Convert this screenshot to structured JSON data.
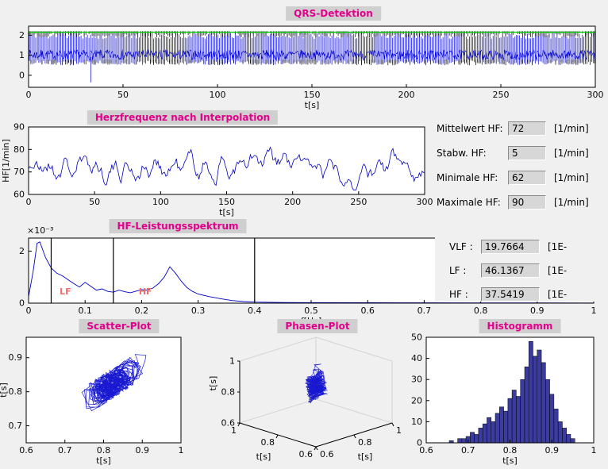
{
  "window": {
    "bg": "#f0f0f0",
    "title_bg": "#cfcfcf",
    "title_color": "#e2008c"
  },
  "panels": {
    "qrs": {
      "title": "QRS-Detektion"
    },
    "hr": {
      "title": "Herzfrequenz nach Interpolation"
    },
    "spectrum": {
      "title": "HF-Leistungsspektrum"
    },
    "scatter": {
      "title": "Scatter-Plot"
    },
    "phase": {
      "title": "Phasen-Plot"
    },
    "histogram": {
      "title": "Histogramm"
    }
  },
  "fields": {
    "hr_stats": [
      {
        "label": "Mittelwert HF:",
        "value": "72",
        "unit": "[1/min]"
      },
      {
        "label": "Stabw. HF:",
        "value": "5",
        "unit": "[1/min]"
      },
      {
        "label": "Minimale HF:",
        "value": "62",
        "unit": "[1/min]"
      },
      {
        "label": "Maximale HF:",
        "value": "90",
        "unit": "[1/min]"
      }
    ],
    "bands": [
      {
        "label": "VLF :",
        "value": "19.7664",
        "unit": "[1E-"
      },
      {
        "label": "LF :",
        "value": "46.1367",
        "unit": "[1E-"
      },
      {
        "label": "HF :",
        "value": "37.5419",
        "unit": "[1E-"
      }
    ]
  },
  "chart_data": [
    {
      "id": "qrs",
      "type": "line",
      "title": "QRS-Detektion",
      "xlabel": "t[s]",
      "xlim": [
        0,
        300
      ],
      "xticks": [
        0,
        50,
        100,
        150,
        200,
        250,
        300
      ],
      "ylim": [
        -0.6,
        2.45
      ],
      "yticks": [
        0,
        1,
        2
      ],
      "seed": 7,
      "beat_interval_s": 0.83,
      "line_color": "#0000cc",
      "threshold_line": {
        "y": 2.15,
        "color": "#00cc00"
      },
      "outlier": {
        "t": 33,
        "y": -0.35
      },
      "description": "ECG signal with detected QRS complexes, R peaks near 2.1, baseline near 1, detection markers in black under green threshold line"
    },
    {
      "id": "heart_rate",
      "type": "line",
      "title": "Herzfrequenz nach Interpolation",
      "xlabel": "t[s]",
      "ylabel": "HF[1/min]",
      "xlim": [
        0,
        300
      ],
      "xticks": [
        0,
        50,
        100,
        150,
        200,
        250,
        300
      ],
      "ylim": [
        60,
        90
      ],
      "yticks": [
        60,
        70,
        80,
        90
      ],
      "seed": 21,
      "line_color": "#0000bb",
      "stats": {
        "mean": 72,
        "std": 5,
        "min": 62,
        "max": 90
      }
    },
    {
      "id": "spectrum",
      "type": "line",
      "title": "HF-Leistungsspektrum",
      "xlabel": "f[Hz]",
      "scale_label": "×10⁻³",
      "xlim": [
        0,
        1
      ],
      "xticks": [
        0,
        0.1,
        0.2,
        0.3,
        0.4,
        0.5,
        0.6,
        0.7,
        0.8,
        0.9,
        1
      ],
      "xlabels": [
        "0",
        "0.1",
        "0.2",
        "0.3",
        "0.4",
        "0.5",
        "0.6",
        "0.7",
        "0.8",
        "0.9",
        "1"
      ],
      "ylim_e3": [
        0,
        2.5
      ],
      "yticks": [
        0,
        2
      ],
      "line_color": "#0000cc",
      "points_e3": [
        [
          0,
          0.25
        ],
        [
          0.008,
          1.2
        ],
        [
          0.015,
          2.3
        ],
        [
          0.02,
          2.35
        ],
        [
          0.03,
          1.75
        ],
        [
          0.04,
          1.35
        ],
        [
          0.05,
          1.15
        ],
        [
          0.06,
          1.05
        ],
        [
          0.07,
          0.9
        ],
        [
          0.08,
          0.75
        ],
        [
          0.09,
          0.62
        ],
        [
          0.1,
          0.8
        ],
        [
          0.11,
          0.65
        ],
        [
          0.12,
          0.5
        ],
        [
          0.13,
          0.55
        ],
        [
          0.14,
          0.45
        ],
        [
          0.15,
          0.42
        ],
        [
          0.16,
          0.5
        ],
        [
          0.17,
          0.44
        ],
        [
          0.18,
          0.4
        ],
        [
          0.19,
          0.46
        ],
        [
          0.2,
          0.52
        ],
        [
          0.21,
          0.5
        ],
        [
          0.22,
          0.58
        ],
        [
          0.23,
          0.75
        ],
        [
          0.24,
          1.0
        ],
        [
          0.25,
          1.4
        ],
        [
          0.26,
          1.15
        ],
        [
          0.27,
          0.85
        ],
        [
          0.28,
          0.6
        ],
        [
          0.29,
          0.45
        ],
        [
          0.3,
          0.35
        ],
        [
          0.32,
          0.25
        ],
        [
          0.34,
          0.17
        ],
        [
          0.36,
          0.1
        ],
        [
          0.38,
          0.06
        ],
        [
          0.4,
          0.04
        ],
        [
          0.45,
          0.025
        ],
        [
          0.5,
          0.02
        ],
        [
          0.6,
          0.015
        ],
        [
          0.7,
          0.012
        ],
        [
          0.8,
          0.01
        ],
        [
          0.9,
          0.008
        ],
        [
          1,
          0.006
        ]
      ],
      "band_lines_hz": [
        0.04,
        0.15,
        0.4
      ],
      "band_labels": [
        {
          "text": "LF",
          "f": 0.055
        },
        {
          "text": "HF",
          "f": 0.195
        }
      ],
      "band_label_color": "#f26d6d",
      "band_values": {
        "VLF": 19.7664,
        "LF": 46.1367,
        "HF": 37.5419
      }
    },
    {
      "id": "scatter",
      "type": "scatter",
      "title": "Scatter-Plot",
      "xlabel": "t[s]",
      "ylabel": "t[s]",
      "xlim": [
        0.6,
        1
      ],
      "xticks": [
        0.6,
        0.7,
        0.8,
        0.9,
        1
      ],
      "xlabels": [
        "0.6",
        "0.7",
        "0.8",
        "0.9",
        "1"
      ],
      "ylim": [
        0.65,
        0.96
      ],
      "yticks": [
        0.7,
        0.8,
        0.9
      ],
      "seed": 5,
      "n_points": 360,
      "rr_mean": 0.83,
      "rr_range": [
        0.66,
        0.95
      ],
      "line_color": "#0000cc",
      "description": "Poincare plot of successive RR intervals, diagonal cluster around 0.83 s"
    },
    {
      "id": "phase",
      "type": "line",
      "title": "Phasen-Plot",
      "xlabel": "t[s]",
      "ylabel": "t[s]",
      "zlabel": "t[s]",
      "lim": [
        0.6,
        1
      ],
      "ticks": [
        0.6,
        0.8,
        1
      ],
      "tick_labels": [
        "0.6",
        "0.8",
        "1"
      ],
      "line_color": "#0000cc",
      "description": "3D phase-space trajectory of RR intervals (RRn, RRn+1, RRn+2)"
    },
    {
      "id": "histogram",
      "type": "bar",
      "title": "Histogramm",
      "xlabel": "t[s]",
      "xlim": [
        0.6,
        1
      ],
      "xticks": [
        0.6,
        0.7,
        0.8,
        0.9,
        1
      ],
      "xlabels": [
        "0.6",
        "0.7",
        "0.8",
        "0.9",
        "1"
      ],
      "ylim": [
        0,
        50
      ],
      "yticks": [
        0,
        10,
        20,
        30,
        40,
        50
      ],
      "bin_start": 0.655,
      "bin_width": 0.01,
      "values": [
        1,
        0,
        2,
        2,
        3,
        5,
        4,
        7,
        9,
        12,
        10,
        14,
        17,
        15,
        21,
        25,
        22,
        30,
        36,
        48,
        41,
        44,
        38,
        30,
        23,
        16,
        10,
        7,
        4,
        2
      ],
      "bar_color": "#3c3c9e"
    }
  ]
}
